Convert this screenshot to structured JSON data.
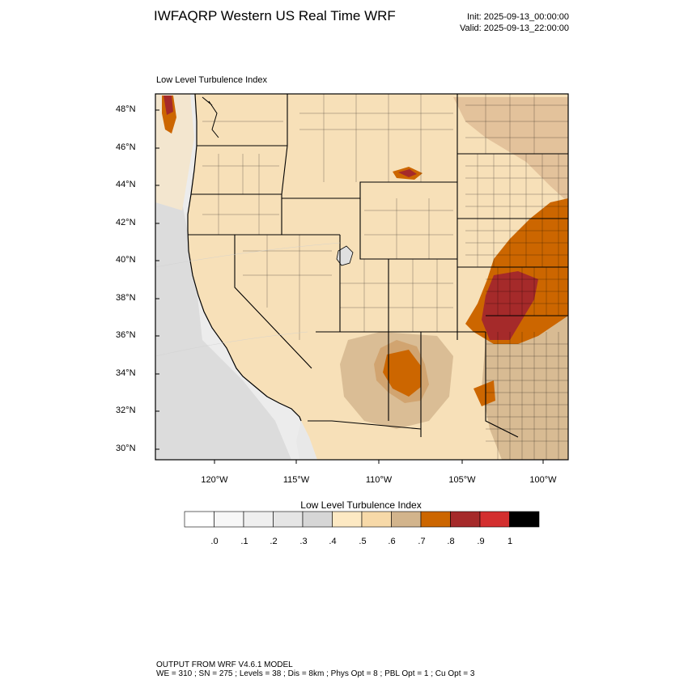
{
  "header": {
    "title": "IWFAQRP Western US Real Time WRF",
    "init": "Init: 2025-09-13_00:00:00",
    "valid": "Valid: 2025-09-13_22:00:00"
  },
  "map": {
    "subtitle": "Low Level Turbulence Index",
    "lat_labels": [
      "48°N",
      "46°N",
      "44°N",
      "42°N",
      "40°N",
      "38°N",
      "36°N",
      "34°N",
      "32°N",
      "30°N"
    ],
    "lon_labels": [
      "120°W",
      "115°W",
      "110°W",
      "105°W",
      "100°W"
    ],
    "base_color": "#f7e0b8",
    "ocean_color": "#ececec"
  },
  "colorbar": {
    "title": "Low Level Turbulence Index",
    "labels": [
      ".0",
      ".1",
      ".2",
      ".3",
      ".4",
      ".5",
      ".6",
      ".7",
      ".8",
      ".9",
      "1"
    ],
    "colors": [
      "#ffffff",
      "#f7f7f7",
      "#efefef",
      "#e5e5e5",
      "#d6d6d6",
      "#fde9c3",
      "#f7d9a8",
      "#d2b48c",
      "#cc6600",
      "#a52a2a",
      "#d32f2f",
      "#000000"
    ]
  },
  "footer": {
    "line1": "OUTPUT FROM WRF V4.6.1 MODEL",
    "line2": "WE = 310 ; SN = 275 ; Levels = 38 ; Dis = 8km ; Phys Opt = 8 ; PBL Opt = 1 ; Cu Opt = 3"
  }
}
